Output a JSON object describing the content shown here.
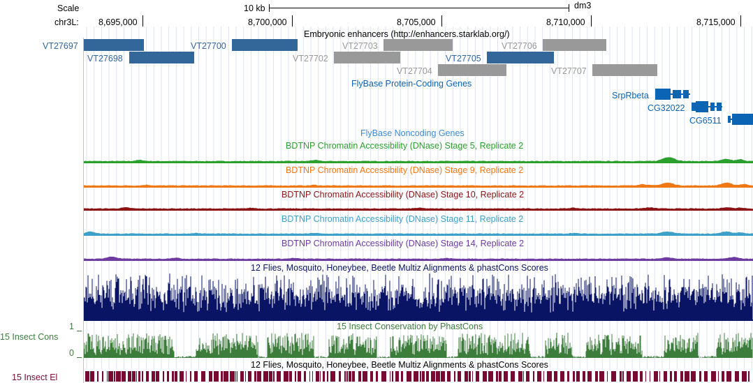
{
  "ruler": {
    "scale_label": "Scale",
    "scale_bar_label": "10 kb",
    "assembly": "dm3",
    "chrom_label": "chr3L:",
    "positions": [
      "8,695,000",
      "8,700,000",
      "8,705,000",
      "8,710,000",
      "8,715,000"
    ]
  },
  "enhancers": {
    "title": "Embryonic enhancers (http://enhancers.starklab.org/)",
    "colors": {
      "active": "#336699",
      "inactive": "#999999"
    },
    "items": [
      {
        "name": "VT27697",
        "state": "active"
      },
      {
        "name": "VT27698",
        "state": "active"
      },
      {
        "name": "VT27700",
        "state": "active"
      },
      {
        "name": "VT27702",
        "state": "inactive"
      },
      {
        "name": "VT27703",
        "state": "inactive"
      },
      {
        "name": "VT27704",
        "state": "inactive"
      },
      {
        "name": "VT27705",
        "state": "active"
      },
      {
        "name": "VT27706",
        "state": "inactive"
      },
      {
        "name": "VT27707",
        "state": "inactive"
      }
    ]
  },
  "protein_genes": {
    "title": "FlyBase Protein-Coding Genes",
    "color": "#0c64b4",
    "genes": [
      "SrpRbeta",
      "CG32022",
      "CG6511"
    ]
  },
  "noncoding": {
    "title": "FlyBase Noncoding Genes",
    "color": "#3c8cd2"
  },
  "dnase_tracks": [
    {
      "title": "BDTNP Chromatin Accessibility (DNase) Stage 5, Replicate 2",
      "color": "#2ca02c"
    },
    {
      "title": "BDTNP Chromatin Accessibility (DNase) Stage 9, Replicate 2",
      "color": "#f07814"
    },
    {
      "title": "BDTNP Chromatin Accessibility (DNase) Stage 10, Replicate 2",
      "color": "#8c1414"
    },
    {
      "title": "BDTNP Chromatin Accessibility (DNase) Stage 11, Replicate 2",
      "color": "#3ca0c8"
    },
    {
      "title": "BDTNP Chromatin Accessibility (DNase) Stage 14, Replicate 2",
      "color": "#6e3ca0"
    }
  ],
  "multiz": {
    "title": "12 Flies, Mosquito, Honeybee, Beetle Multiz Alignments & phastCons Scores",
    "color": "#0a1464"
  },
  "cons": {
    "title": "15 Insect Conservation by PhastCons",
    "side_label": "15 Insect Cons",
    "y_top": "1",
    "y_bottom": "0",
    "color": "#3c7d3c"
  },
  "elements": {
    "title": "12 Flies, Mosquito, Honeybee, Beetle Multiz Alignments & phastCons Scores",
    "side_label": "15 Insect El",
    "color": "#780a32"
  }
}
